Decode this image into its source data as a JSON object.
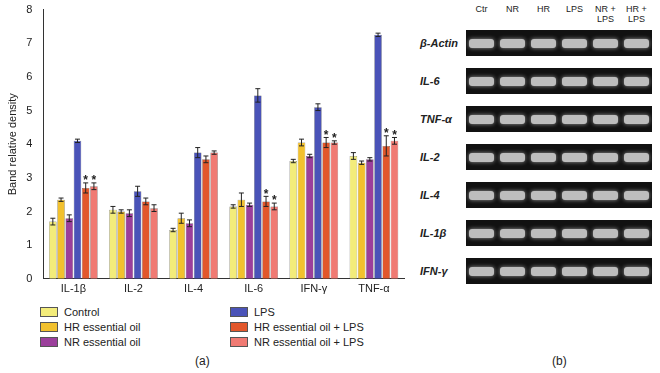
{
  "chart_data": {
    "type": "bar",
    "panel_label": "(a)",
    "y_label": "Band relative density",
    "categories": [
      "IL-1β",
      "IL-2",
      "IL-4",
      "IL-6",
      "IFN-γ",
      "TNF-α"
    ],
    "ylim": [
      0,
      8
    ],
    "yticks": [
      0,
      1,
      2,
      3,
      4,
      5,
      6,
      7,
      8
    ],
    "grid": false,
    "legend": "bottom",
    "series": [
      {
        "name": "Control",
        "color": "#f3ec7a",
        "values": [
          1.7,
          2.05,
          1.45,
          2.15,
          3.5,
          3.65
        ],
        "errors": [
          0.1,
          0.1,
          0.05,
          0.05,
          0.05,
          0.1
        ]
      },
      {
        "name": "HR essential oil",
        "color": "#f2c12e",
        "values": [
          2.35,
          2.0,
          1.8,
          2.35,
          4.05,
          3.45
        ],
        "errors": [
          0.05,
          0.05,
          0.15,
          0.2,
          0.1,
          0.05
        ]
      },
      {
        "name": "NR essential oil",
        "color": "#9b3f9b",
        "values": [
          1.8,
          1.95,
          1.65,
          2.2,
          3.65,
          3.55
        ],
        "errors": [
          0.1,
          0.1,
          0.1,
          0.05,
          0.05,
          0.05
        ]
      },
      {
        "name": "LPS",
        "color": "#4a53b8",
        "values": [
          4.1,
          2.6,
          3.75,
          5.45,
          5.1,
          7.25
        ],
        "errors": [
          0.05,
          0.15,
          0.15,
          0.2,
          0.1,
          0.05
        ]
      },
      {
        "name": "HR essential oil + LPS",
        "color": "#e2572b",
        "values": [
          2.7,
          2.3,
          3.55,
          2.3,
          4.05,
          3.95
        ],
        "errors": [
          0.15,
          0.1,
          0.1,
          0.15,
          0.15,
          0.3
        ],
        "annotations": [
          "*",
          null,
          null,
          "*",
          "*",
          "*"
        ]
      },
      {
        "name": "NR essential oil + LPS",
        "color": "#f07a73",
        "values": [
          2.75,
          2.1,
          3.75,
          2.15,
          4.05,
          4.1
        ],
        "errors": [
          0.1,
          0.1,
          0.05,
          0.1,
          0.05,
          0.1
        ],
        "annotations": [
          "*",
          null,
          null,
          "*",
          "*",
          "*"
        ]
      }
    ]
  },
  "gel": {
    "panel_label": "(b)",
    "columns": [
      "Ctr",
      "NR",
      "HR",
      "LPS",
      "NR + LPS",
      "HR + LPS"
    ],
    "rows": [
      "β-Actin",
      "IL-6",
      "TNF-α",
      "IL-2",
      "IL-4",
      "IL-1β",
      "IFN-γ"
    ]
  }
}
